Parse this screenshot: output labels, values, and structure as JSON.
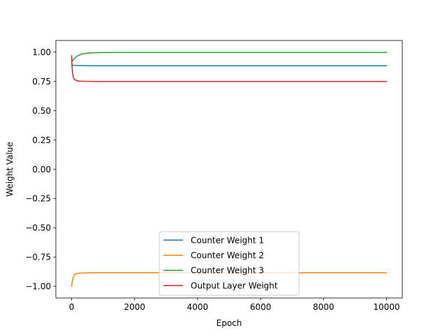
{
  "chart_data": {
    "type": "line",
    "title": "",
    "xlabel": "Epoch",
    "ylabel": "Weight Value",
    "xlim": [
      -500,
      10500
    ],
    "ylim": [
      -1.1,
      1.1
    ],
    "x_ticks": [
      0,
      2000,
      4000,
      6000,
      8000,
      10000
    ],
    "x_tick_labels": [
      "0",
      "2000",
      "4000",
      "6000",
      "8000",
      "10000"
    ],
    "y_ticks": [
      1.0,
      0.75,
      0.5,
      0.25,
      0.0,
      -0.25,
      -0.5,
      -0.75,
      -1.0
    ],
    "y_tick_labels": [
      "1.00",
      "0.75",
      "0.50",
      "0.25",
      "0.00",
      "−0.25",
      "−0.50",
      "−0.75",
      "−1.00"
    ],
    "grid": false,
    "legend_position": "bottom-center",
    "series": [
      {
        "name": "Counter Weight 1",
        "color": "#1f77b4",
        "x": [
          0,
          50,
          100,
          200,
          400,
          700,
          1000,
          2000,
          4000,
          6000,
          8000,
          10000
        ],
        "y": [
          0.89,
          0.888,
          0.887,
          0.886,
          0.885,
          0.884,
          0.884,
          0.884,
          0.884,
          0.884,
          0.884,
          0.884
        ]
      },
      {
        "name": "Counter Weight 2",
        "color": "#ff7f0e",
        "x": [
          0,
          10,
          30,
          60,
          100,
          150,
          200,
          300,
          500,
          800,
          1000,
          2000,
          4000,
          6000,
          8000,
          10000
        ],
        "y": [
          -1.0,
          -0.98,
          -0.945,
          -0.915,
          -0.9,
          -0.892,
          -0.889,
          -0.887,
          -0.885,
          -0.884,
          -0.884,
          -0.884,
          -0.884,
          -0.884,
          -0.884,
          -0.884
        ]
      },
      {
        "name": "Counter Weight 3",
        "color": "#2ca02c",
        "x": [
          0,
          10,
          30,
          60,
          100,
          200,
          300,
          500,
          700,
          1000,
          1500,
          2000,
          4000,
          6000,
          8000,
          10000
        ],
        "y": [
          0.97,
          0.93,
          0.925,
          0.935,
          0.95,
          0.97,
          0.982,
          0.992,
          0.995,
          0.997,
          0.998,
          0.998,
          0.998,
          0.998,
          0.998,
          0.998
        ]
      },
      {
        "name": "Output Layer Weight",
        "color": "#d62728",
        "x": [
          0,
          10,
          30,
          60,
          100,
          150,
          200,
          300,
          500,
          800,
          1000,
          2000,
          4000,
          6000,
          8000,
          10000
        ],
        "y": [
          0.96,
          0.9,
          0.82,
          0.78,
          0.765,
          0.758,
          0.754,
          0.752,
          0.751,
          0.75,
          0.75,
          0.75,
          0.75,
          0.75,
          0.75,
          0.75
        ]
      }
    ]
  }
}
